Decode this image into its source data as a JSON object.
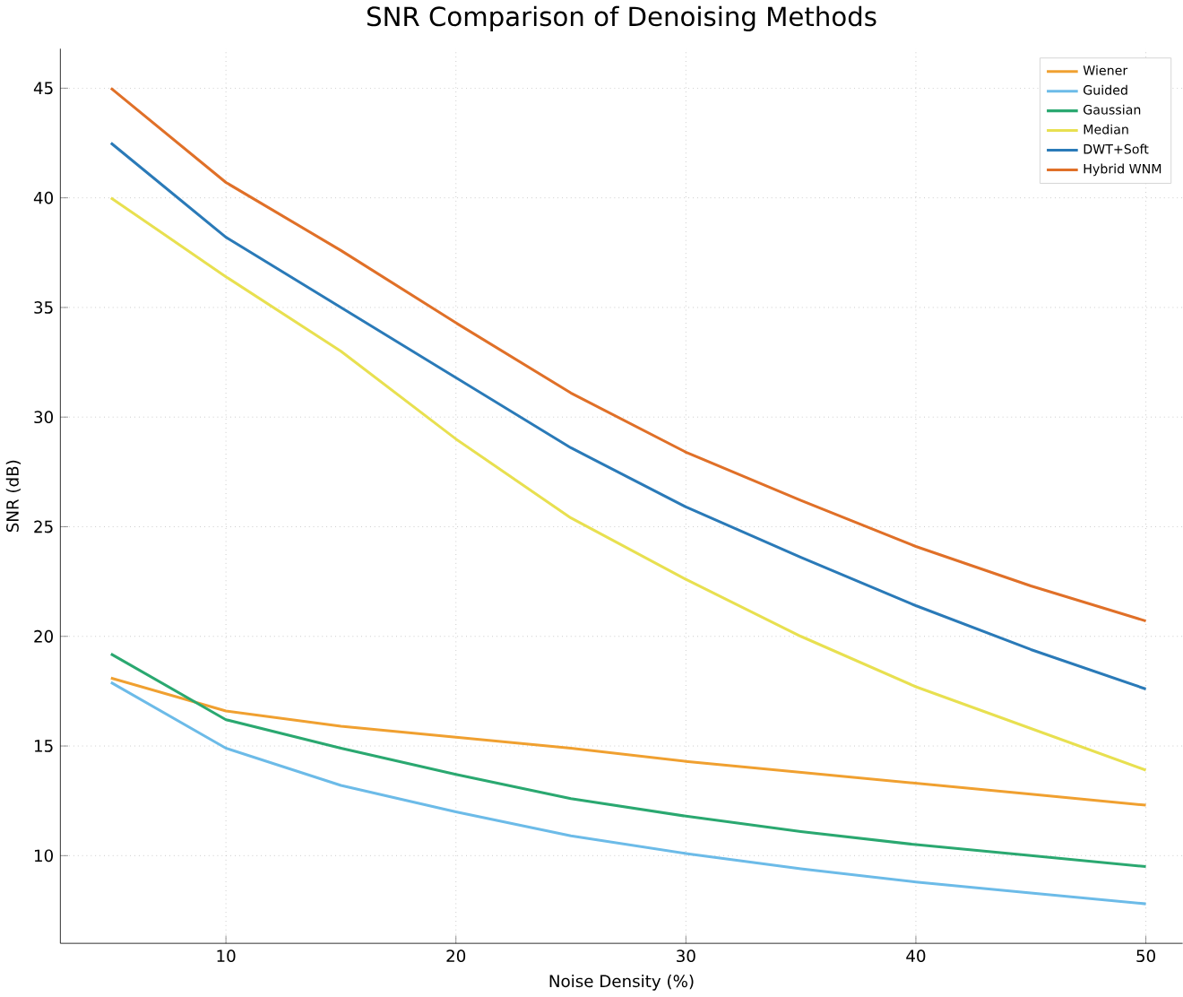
{
  "chart_data": {
    "type": "line",
    "title": "SNR Comparison of Denoising Methods",
    "xlabel": "Noise Density (%)",
    "ylabel": "SNR (dB)",
    "x": [
      5,
      10,
      15,
      20,
      25,
      30,
      35,
      40,
      45,
      50
    ],
    "series": [
      {
        "name": "Wiener",
        "color": "#f0a030",
        "values": [
          18.1,
          16.6,
          15.9,
          15.4,
          14.9,
          14.3,
          13.8,
          13.3,
          12.8,
          12.3
        ]
      },
      {
        "name": "Guided",
        "color": "#6cbbe8",
        "values": [
          17.9,
          14.9,
          13.2,
          12.0,
          10.9,
          10.1,
          9.4,
          8.8,
          8.3,
          7.8
        ]
      },
      {
        "name": "Gaussian",
        "color": "#2aa870",
        "values": [
          19.2,
          16.2,
          14.9,
          13.7,
          12.6,
          11.8,
          11.1,
          10.5,
          10.0,
          9.5
        ]
      },
      {
        "name": "Median",
        "color": "#e8e050",
        "values": [
          40.0,
          36.4,
          33.0,
          29.0,
          25.4,
          22.6,
          20.0,
          17.7,
          15.8,
          13.9
        ]
      },
      {
        "name": "DWT+Soft",
        "color": "#2a7ab8",
        "values": [
          42.5,
          38.2,
          35.0,
          31.8,
          28.6,
          25.9,
          23.6,
          21.4,
          19.4,
          17.6
        ]
      },
      {
        "name": "Hybrid WNM",
        "color": "#e07028",
        "values": [
          45.0,
          40.7,
          37.6,
          34.3,
          31.1,
          28.4,
          26.2,
          24.1,
          22.3,
          20.7
        ]
      }
    ],
    "xlim": [
      2.8,
      51.6
    ],
    "ylim": [
      6.0,
      46.8
    ],
    "xticks": [
      10,
      20,
      30,
      40,
      50
    ],
    "yticks": [
      10,
      15,
      20,
      25,
      30,
      35,
      40,
      45
    ],
    "grid": true,
    "legend": "top right"
  }
}
